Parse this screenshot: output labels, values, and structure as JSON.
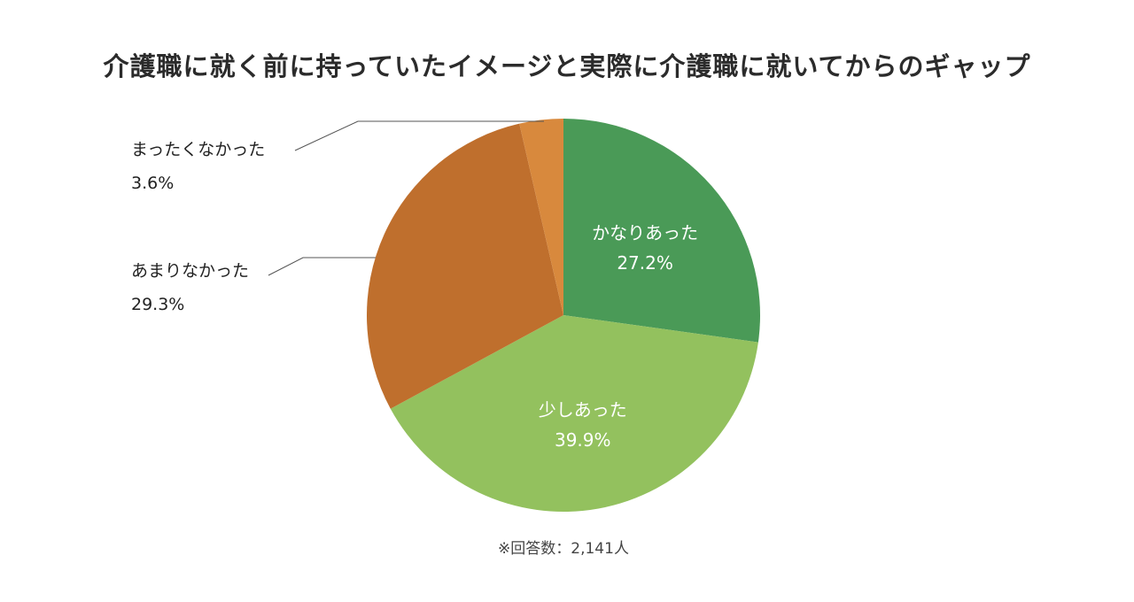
{
  "chart_data": {
    "type": "pie",
    "title": "介護職に就く前に持っていたイメージと実際に介護職に就いてからのギャップ",
    "start_angle_deg": 0,
    "direction": "clockwise",
    "slices": [
      {
        "label": "かなりあった",
        "value": 27.2,
        "display": "27.2%",
        "color": "#4a9a57",
        "label_position": "inside"
      },
      {
        "label": "少しあった",
        "value": 39.9,
        "display": "39.9%",
        "color": "#93c15e",
        "label_position": "inside"
      },
      {
        "label": "あまりなかった",
        "value": 29.3,
        "display": "29.3%",
        "color": "#bf6f2d",
        "label_position": "outside-left"
      },
      {
        "label": "まったくなかった",
        "value": 3.6,
        "display": "3.6%",
        "color": "#d8893d",
        "label_position": "outside-left"
      }
    ],
    "footnote": "※回答数：2,141人"
  }
}
